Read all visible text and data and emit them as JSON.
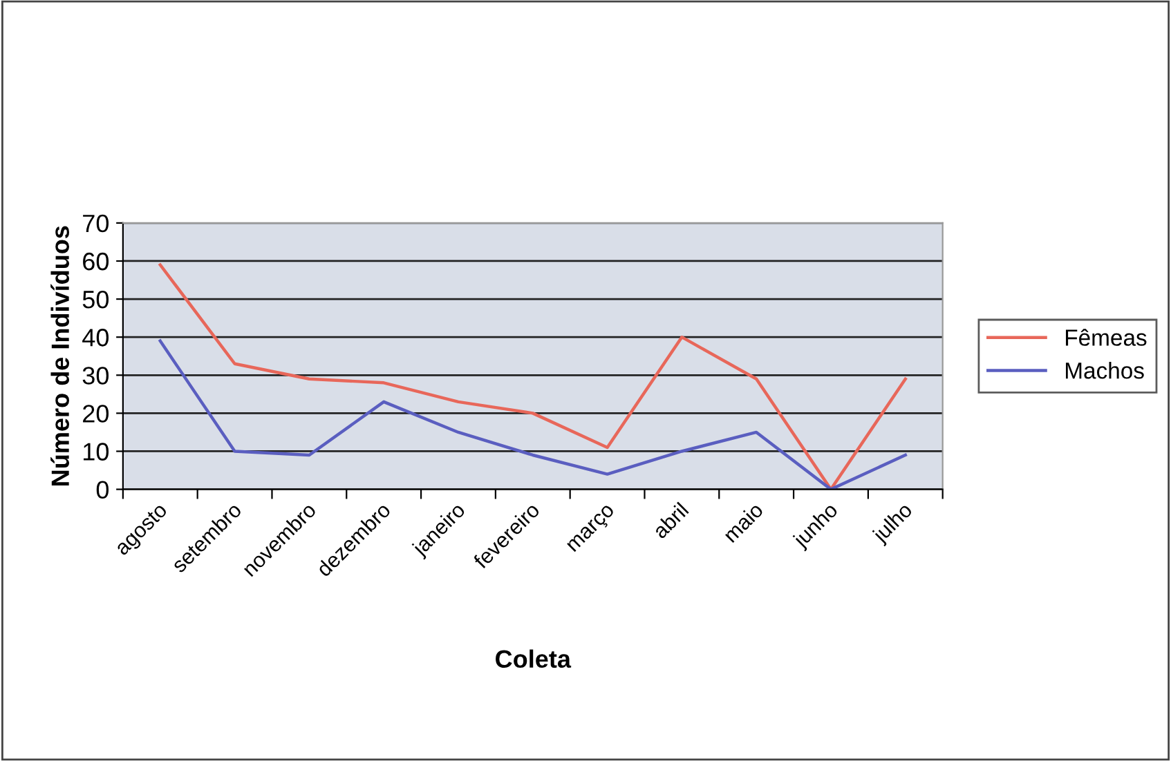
{
  "chart_data": {
    "type": "line",
    "xlabel": "Coleta",
    "ylabel": "Número de Indivíduos",
    "categories": [
      "agosto",
      "setembro",
      "novembro",
      "dezembro",
      "janeiro",
      "fevereiro",
      "março",
      "abril",
      "maio",
      "junho",
      "julho"
    ],
    "series": [
      {
        "name": "Fêmeas",
        "color": "#e8675a",
        "values": [
          59,
          33,
          29,
          28,
          23,
          20,
          11,
          40,
          29,
          0,
          29
        ]
      },
      {
        "name": "Machos",
        "color": "#5a5ec0",
        "values": [
          39,
          10,
          9,
          23,
          15,
          9,
          4,
          10,
          15,
          0,
          9
        ]
      }
    ],
    "ylim": [
      0,
      70
    ],
    "yticks": [
      0,
      10,
      20,
      30,
      40,
      50,
      60,
      70
    ],
    "grid": "y",
    "legend": "right",
    "marker": "none",
    "line_style": "solid"
  }
}
